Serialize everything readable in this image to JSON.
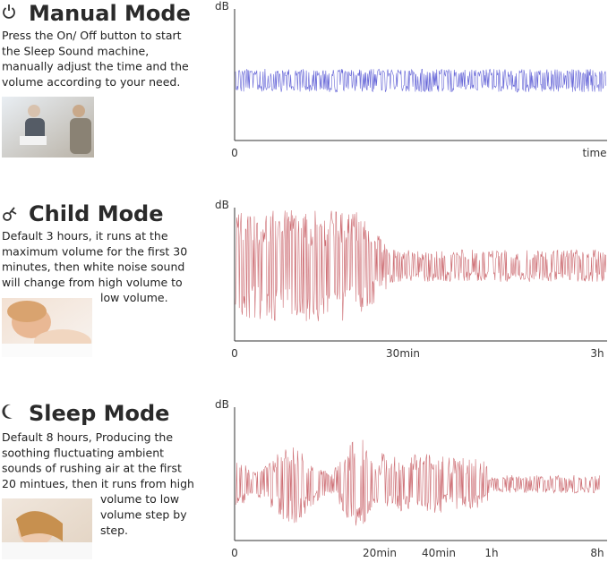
{
  "sections": [
    {
      "title": "Manual Mode",
      "lines": [
        "Press the On/ Off button to start",
        "the Sleep Sound machine,",
        "manually adjust the time and the",
        "volume according to your need."
      ],
      "y_label": "dB",
      "x_labels": [
        "0",
        "time"
      ]
    },
    {
      "title": "Child Mode",
      "lines": [
        "Default 3 hours, it runs at the",
        "maximum volume for the first 30",
        "minutes, then white noise sound",
        "will change from high volume to",
        "low volume."
      ],
      "y_label": "dB",
      "x_labels": [
        "0",
        "30min",
        "3h"
      ]
    },
    {
      "title": "Sleep Mode",
      "lines": [
        "Default 8 hours, Producing the",
        "soothing fluctuating ambient",
        "sounds of rushing air at the first",
        "20 mintues, then it runs from high",
        "volume to low",
        "volume step by",
        "step."
      ],
      "y_label": "dB",
      "x_labels": [
        "0",
        "20min",
        "40min",
        "1h",
        "8h"
      ]
    }
  ]
}
